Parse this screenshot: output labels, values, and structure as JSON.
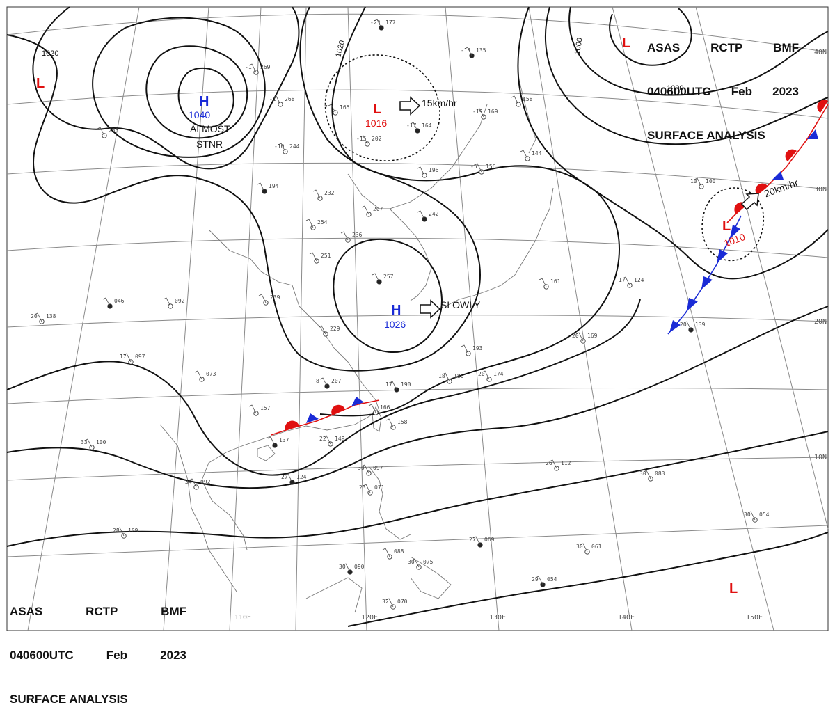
{
  "header": {
    "agency": "ASAS",
    "center": "RCTP",
    "office": "BMF",
    "datetime": "040600UTC",
    "month": "Feb",
    "year": "2023",
    "title": "SURFACE ANALYSIS"
  },
  "pressure_systems": [
    {
      "kind": "H",
      "pressure": "1040",
      "note": "ALMOST STNR",
      "color": "#1a2bd6"
    },
    {
      "kind": "L",
      "pressure": "1016",
      "motion": "15km/hr",
      "color": "#e01010"
    },
    {
      "kind": "H",
      "pressure": "1026",
      "motion": "SLOWLY",
      "color": "#1a2bd6"
    },
    {
      "kind": "L",
      "pressure": "1010",
      "motion": "20km/hr",
      "color": "#e01010"
    },
    {
      "kind": "L",
      "pressure": "",
      "color": "#e01010"
    },
    {
      "kind": "L",
      "pressure": "",
      "color": "#e01010"
    },
    {
      "kind": "L",
      "pressure": "",
      "color": "#e01010"
    }
  ],
  "isobar_labels": [
    "1020",
    "1020",
    "1000",
    "1000"
  ],
  "longitude_labels": [
    "110E",
    "120E",
    "130E",
    "140E",
    "150E"
  ],
  "latitude_labels": [
    "40N",
    "30N",
    "20N",
    "10N"
  ],
  "station_reports": [
    {
      "t": "-23",
      "p": "177"
    },
    {
      "t": "-1",
      "p": "269"
    },
    {
      "t": "-1",
      "p": "268"
    },
    {
      "t": "7",
      "p": "165"
    },
    {
      "t": "-17",
      "p": "164"
    },
    {
      "t": "-15",
      "p": "202"
    },
    {
      "t": "-10",
      "p": "244"
    },
    {
      "t": "",
      "p": "235"
    },
    {
      "t": "",
      "p": "194"
    },
    {
      "t": "",
      "p": "232"
    },
    {
      "t": "",
      "p": "254"
    },
    {
      "t": "",
      "p": "207"
    },
    {
      "t": "",
      "p": "242"
    },
    {
      "t": "",
      "p": "236"
    },
    {
      "t": "",
      "p": "196"
    },
    {
      "t": "-5",
      "p": "156"
    },
    {
      "t": "-13",
      "p": "135"
    },
    {
      "t": "-19",
      "p": "169"
    },
    {
      "t": "",
      "p": "158"
    },
    {
      "t": "",
      "p": "251"
    },
    {
      "t": "",
      "p": "257"
    },
    {
      "t": "",
      "p": "229"
    },
    {
      "t": "",
      "p": "239"
    },
    {
      "t": "",
      "p": "092"
    },
    {
      "t": "",
      "p": "046"
    },
    {
      "t": "20",
      "p": "138"
    },
    {
      "t": "17",
      "p": "097"
    },
    {
      "t": "",
      "p": "073"
    },
    {
      "t": "8",
      "p": "207"
    },
    {
      "t": "",
      "p": "193"
    },
    {
      "t": "18",
      "p": "186"
    },
    {
      "t": "20",
      "p": "174"
    },
    {
      "t": "17",
      "p": "190"
    },
    {
      "t": "",
      "p": "166"
    },
    {
      "t": "",
      "p": "158"
    },
    {
      "t": "22",
      "p": "149"
    },
    {
      "t": "",
      "p": "137"
    },
    {
      "t": "",
      "p": "157"
    },
    {
      "t": "33",
      "p": "100"
    },
    {
      "t": "34",
      "p": "092"
    },
    {
      "t": "27",
      "p": "124"
    },
    {
      "t": "28",
      "p": "109"
    },
    {
      "t": "30",
      "p": "097"
    },
    {
      "t": "23",
      "p": "071"
    },
    {
      "t": "30",
      "p": "090"
    },
    {
      "t": "",
      "p": "088"
    },
    {
      "t": "30",
      "p": "075"
    },
    {
      "t": "32",
      "p": "070"
    },
    {
      "t": "27",
      "p": "069"
    },
    {
      "t": "26",
      "p": "112"
    },
    {
      "t": "30",
      "p": "083"
    },
    {
      "t": "30",
      "p": "061"
    },
    {
      "t": "29",
      "p": "054"
    },
    {
      "t": "30",
      "p": "054"
    },
    {
      "t": "17",
      "p": "124"
    },
    {
      "t": "20",
      "p": "169"
    },
    {
      "t": "20",
      "p": "139"
    },
    {
      "t": "10",
      "p": "100"
    },
    {
      "t": "",
      "p": "161"
    },
    {
      "t": "",
      "p": "144"
    }
  ],
  "colors": {
    "isobar": "#111111",
    "high": "#1a2bd6",
    "low": "#e01010",
    "cold_front": "#1a2bd6",
    "warm_front": "#e01010",
    "coast": "#777777",
    "grid": "#8a8a8a"
  }
}
